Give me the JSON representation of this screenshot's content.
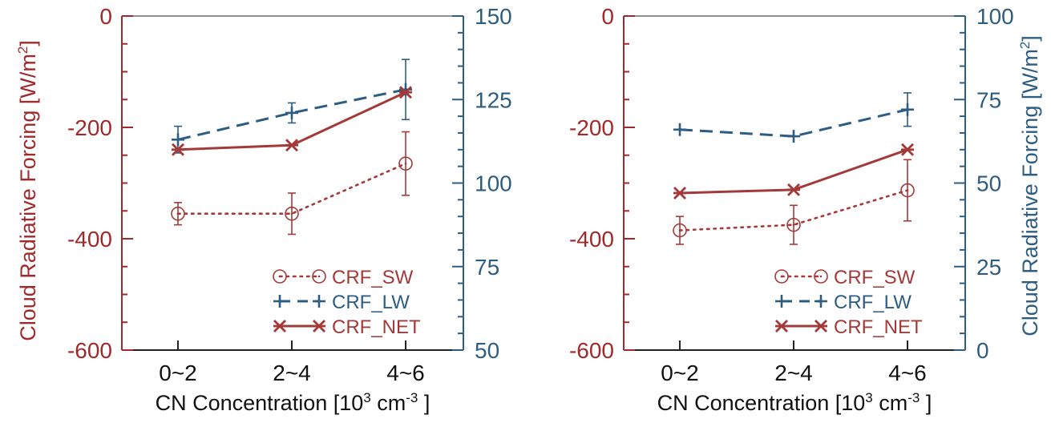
{
  "colors": {
    "left_axis": "#9e2a2b",
    "right_axis": "#2e5d82",
    "sw": "#a33a3a",
    "lw": "#2e5d82",
    "net": "#a33a3a",
    "frame": "#222222"
  },
  "labels": {
    "ylabel_left": "Cloud Radiative Forcing [W/m",
    "ylabel_left_sup": "2",
    "ylabel_left_end": "]",
    "ylabel_right": "Cloud Radiative Forcing [W/m",
    "ylabel_right_sup": "2",
    "ylabel_right_end": "]",
    "xlabel_main": "CN Concentration [10",
    "xlabel_sup1": "3",
    "xlabel_mid": " cm",
    "xlabel_sup2": "-3",
    "xlabel_end": " ]"
  },
  "chart_data": [
    {
      "type": "line",
      "categories": [
        "0~2",
        "2~4",
        "4~6"
      ],
      "y_left": {
        "ylim": [
          -600,
          0
        ],
        "ticks": [
          "0",
          "-200",
          "-400",
          "-600"
        ]
      },
      "y_right": {
        "ylim": [
          50,
          150
        ],
        "ticks": [
          "50",
          "75",
          "100",
          "125",
          "150"
        ]
      },
      "legend": {
        "placement": "bottom-right",
        "entries": [
          "CRF_SW",
          "CRF_LW",
          "CRF_NET"
        ]
      },
      "series": [
        {
          "name": "CRF_SW",
          "axis": "left",
          "values": [
            -355,
            -355,
            -265
          ],
          "err": [
            20,
            37,
            57
          ]
        },
        {
          "name": "CRF_LW",
          "axis": "right",
          "values": [
            113,
            121,
            128
          ],
          "err": [
            4,
            3,
            9
          ]
        },
        {
          "name": "CRF_NET",
          "axis": "left",
          "values": [
            -240,
            -232,
            -137
          ],
          "err": [
            0,
            0,
            0
          ]
        }
      ]
    },
    {
      "type": "line",
      "categories": [
        "0~2",
        "2~4",
        "4~6"
      ],
      "y_left": {
        "ylim": [
          -600,
          0
        ],
        "ticks": [
          "0",
          "-200",
          "-400",
          "-600"
        ]
      },
      "y_right": {
        "ylim": [
          0,
          100
        ],
        "ticks": [
          "0",
          "25",
          "50",
          "75",
          "100"
        ]
      },
      "legend": {
        "placement": "bottom-right",
        "entries": [
          "CRF_SW",
          "CRF_LW",
          "CRF_NET"
        ]
      },
      "series": [
        {
          "name": "CRF_SW",
          "axis": "left",
          "values": [
            -385,
            -375,
            -313
          ],
          "err": [
            25,
            35,
            55
          ]
        },
        {
          "name": "CRF_LW",
          "axis": "right",
          "values": [
            66,
            64,
            72
          ],
          "err": [
            0,
            0,
            5
          ]
        },
        {
          "name": "CRF_NET",
          "axis": "left",
          "values": [
            -318,
            -312,
            -240
          ],
          "err": [
            0,
            0,
            0
          ]
        }
      ]
    }
  ]
}
